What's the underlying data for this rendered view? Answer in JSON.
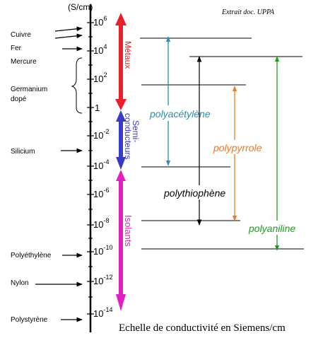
{
  "header": {
    "unit": "(S/cm)",
    "source": "Extrait doc. UPPA"
  },
  "scale": {
    "ticks": [
      {
        "base": "10",
        "exp": "6"
      },
      {
        "base": "10",
        "exp": "4"
      },
      {
        "base": "10",
        "exp": "2"
      },
      {
        "base": "1",
        "exp": ""
      },
      {
        "base": "10",
        "exp": "-2"
      },
      {
        "base": "10",
        "exp": "-4"
      },
      {
        "base": "10",
        "exp": "-6"
      },
      {
        "base": "10",
        "exp": "-8"
      },
      {
        "base": "10",
        "exp": "-10"
      },
      {
        "base": "10",
        "exp": "-12"
      },
      {
        "base": "10",
        "exp": "-14"
      }
    ]
  },
  "materials": {
    "cuivre": "Cuivre",
    "fer": "Fer",
    "mercure": "Mercure",
    "germanium_1": "Germanium",
    "germanium_2": "dopé",
    "silicium": "Silicium",
    "polyethylene": "Polyéthylène",
    "nylon": "Nylon",
    "polystyrene": "Polystyrène"
  },
  "classes": {
    "metaux": "Métaux",
    "semi_1": "Semi-",
    "semi_2": "conducteurs",
    "isolants": "Isolants"
  },
  "polymers": {
    "polyacetylene": "polyacétylène",
    "polypyrrole": "polypyrrole",
    "polythiophene": "polythiophène",
    "polyaniline": "polyaniline"
  },
  "caption": "Echelle de conductivité en Siemens/cm",
  "colors": {
    "metaux": "#e8202a",
    "semi": "#3a3ac8",
    "isolants": "#e020c0",
    "polyacetylene": "#2a8fa8",
    "polypyrrole": "#f07820",
    "polythiophene": "#000000",
    "polyaniline": "#1e9a1e"
  }
}
